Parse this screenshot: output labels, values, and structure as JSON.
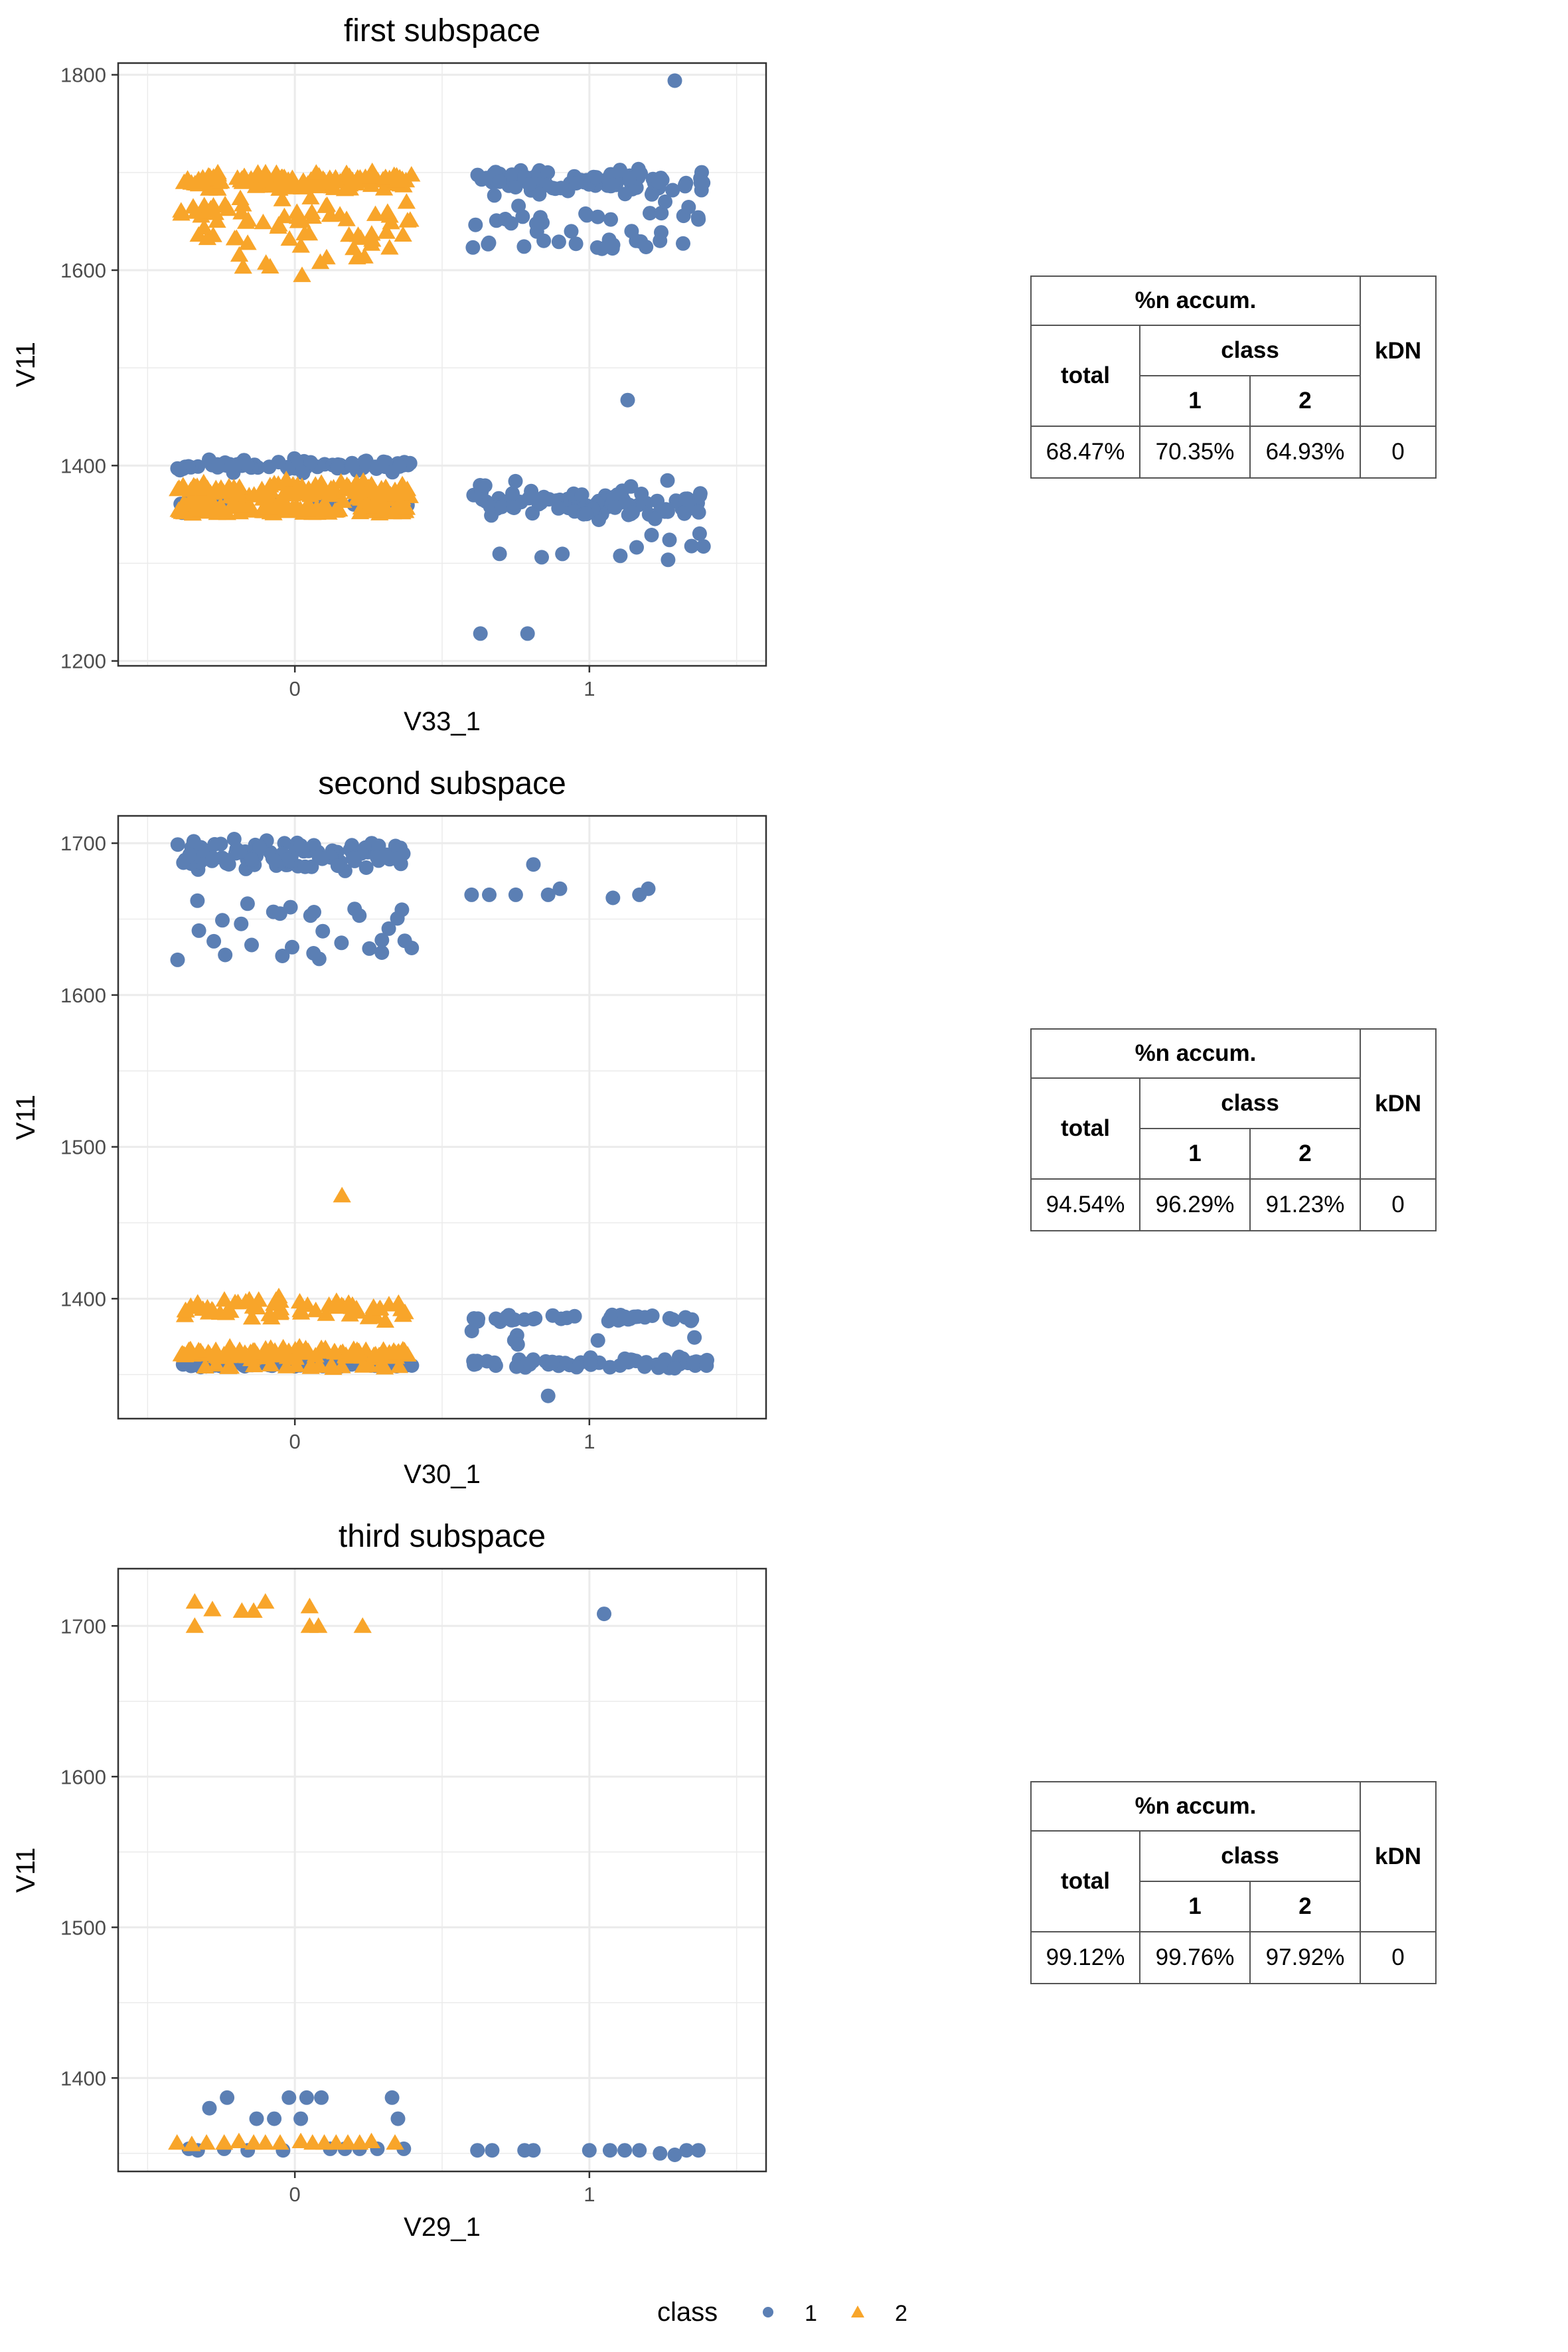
{
  "colors": {
    "class1": "#5b7fb4",
    "class2": "#f8a52a",
    "grid": "#ebebeb",
    "panel_border": "#333333",
    "axis_text": "#4d4d4d"
  },
  "chart_data": [
    {
      "type": "scatter",
      "title": "first subspace",
      "xlabel": "V33_1",
      "ylabel": "V11",
      "xlim": [
        -0.6,
        1.6
      ],
      "ylim": [
        1195,
        1812
      ],
      "xticks": [
        0,
        1
      ],
      "xtick_labels": [
        "0",
        "1"
      ],
      "yticks": [
        1200,
        1400,
        1600,
        1800
      ],
      "ytick_labels": [
        "1200",
        "1400",
        "1600",
        "1800"
      ],
      "jitter_width": 0.4,
      "series": [
        {
          "name": "1",
          "clusters": [
            {
              "x": 1,
              "y": 1690,
              "n": 90,
              "spread": 6
            },
            {
              "x": 1,
              "y": 1655,
              "n": 24,
              "spread": 8
            },
            {
              "x": 1,
              "y": 1627,
              "n": 18,
              "spread": 3
            },
            {
              "x": 0,
              "y": 1400,
              "n": 70,
              "spread": 3
            },
            {
              "x": 0,
              "y": 1360,
              "n": 22,
              "spread": 4
            },
            {
              "x": 1,
              "y": 1360,
              "n": 85,
              "spread": 6
            },
            {
              "x": 1,
              "y": 1380,
              "n": 10,
              "spread": 6
            },
            {
              "x": 1,
              "y": 1315,
              "n": 11,
              "spread": 8
            }
          ],
          "points": [
            {
              "x": 1.29,
              "y": 1794
            },
            {
              "x": 1.13,
              "y": 1467
            },
            {
              "x": 0.63,
              "y": 1228
            },
            {
              "x": 0.79,
              "y": 1228
            }
          ]
        },
        {
          "name": "2",
          "clusters": [
            {
              "x": 0,
              "y": 1692,
              "n": 120,
              "spread": 4
            },
            {
              "x": 0,
              "y": 1658,
              "n": 40,
              "spread": 7
            },
            {
              "x": 0,
              "y": 1636,
              "n": 22,
              "spread": 6
            },
            {
              "x": 0,
              "y": 1610,
              "n": 10,
              "spread": 7
            },
            {
              "x": 0,
              "y": 1373,
              "n": 110,
              "spread": 5
            },
            {
              "x": 0,
              "y": 1355,
              "n": 110,
              "spread": 3
            }
          ],
          "points": []
        }
      ],
      "table": {
        "header_group": "%n accum.",
        "total_label": "total",
        "class_label": "class",
        "class1_label": "1",
        "class2_label": "2",
        "kdn_label": "kDN",
        "total": "68.47%",
        "class1": "70.35%",
        "class2": "64.93%",
        "kdn": "0"
      }
    },
    {
      "type": "scatter",
      "title": "second subspace",
      "xlabel": "V30_1",
      "ylabel": "V11",
      "xlim": [
        -0.6,
        1.6
      ],
      "ylim": [
        1321,
        1718
      ],
      "xticks": [
        0,
        1
      ],
      "xtick_labels": [
        "0",
        "1"
      ],
      "yticks": [
        1400,
        1500,
        1600,
        1700
      ],
      "ytick_labels": [
        "1400",
        "1500",
        "1600",
        "1700"
      ],
      "jitter_width": 0.4,
      "series": [
        {
          "name": "1",
          "clusters": [
            {
              "x": 0,
              "y": 1692,
              "n": 95,
              "spread": 5
            },
            {
              "x": 0,
              "y": 1652,
              "n": 16,
              "spread": 6
            },
            {
              "x": 0,
              "y": 1630,
              "n": 14,
              "spread": 4
            },
            {
              "x": 0,
              "y": 1357,
              "n": 110,
              "spread": 1
            },
            {
              "x": 1,
              "y": 1387,
              "n": 40,
              "spread": 1
            },
            {
              "x": 1,
              "y": 1358,
              "n": 55,
              "spread": 2
            },
            {
              "x": 1,
              "y": 1375,
              "n": 6,
              "spread": 3
            }
          ],
          "points": [
            {
              "x": 0.6,
              "y": 1666
            },
            {
              "x": 0.66,
              "y": 1666
            },
            {
              "x": 0.75,
              "y": 1666
            },
            {
              "x": 0.81,
              "y": 1686
            },
            {
              "x": 0.86,
              "y": 1666
            },
            {
              "x": 0.9,
              "y": 1670
            },
            {
              "x": 1.08,
              "y": 1664
            },
            {
              "x": 1.17,
              "y": 1666
            },
            {
              "x": 1.2,
              "y": 1670
            },
            {
              "x": 0.86,
              "y": 1336
            }
          ]
        },
        {
          "name": "2",
          "clusters": [
            {
              "x": 0,
              "y": 1394,
              "n": 60,
              "spread": 4
            },
            {
              "x": 0,
              "y": 1364,
              "n": 100,
              "spread": 2
            },
            {
              "x": 0,
              "y": 1356,
              "n": 20,
              "spread": 1
            }
          ],
          "points": [
            {
              "x": 0.16,
              "y": 1468
            }
          ]
        }
      ],
      "table": {
        "header_group": "%n accum.",
        "total_label": "total",
        "class_label": "class",
        "class1_label": "1",
        "class2_label": "2",
        "kdn_label": "kDN",
        "total": "94.54%",
        "class1": "96.29%",
        "class2": "91.23%",
        "kdn": "0"
      }
    },
    {
      "type": "scatter",
      "title": "third subspace",
      "xlabel": "V29_1",
      "ylabel": "V11",
      "xlim": [
        -0.6,
        1.6
      ],
      "ylim": [
        1338,
        1738
      ],
      "xticks": [
        0,
        1
      ],
      "xtick_labels": [
        "0",
        "1"
      ],
      "yticks": [
        1400,
        1500,
        1600,
        1700
      ],
      "ytick_labels": [
        "1400",
        "1500",
        "1600",
        "1700"
      ],
      "jitter_width": 0.4,
      "series": [
        {
          "name": "1",
          "clusters": [],
          "points": [
            {
              "x": 1.05,
              "y": 1708
            },
            {
              "x": -0.36,
              "y": 1353
            },
            {
              "x": -0.33,
              "y": 1352
            },
            {
              "x": -0.29,
              "y": 1380
            },
            {
              "x": -0.23,
              "y": 1387
            },
            {
              "x": -0.24,
              "y": 1353
            },
            {
              "x": -0.16,
              "y": 1352
            },
            {
              "x": -0.13,
              "y": 1373
            },
            {
              "x": -0.07,
              "y": 1373
            },
            {
              "x": -0.04,
              "y": 1352
            },
            {
              "x": -0.02,
              "y": 1387
            },
            {
              "x": 0.02,
              "y": 1373
            },
            {
              "x": 0.04,
              "y": 1387
            },
            {
              "x": 0.09,
              "y": 1387
            },
            {
              "x": 0.12,
              "y": 1353
            },
            {
              "x": 0.17,
              "y": 1353
            },
            {
              "x": 0.22,
              "y": 1353
            },
            {
              "x": 0.28,
              "y": 1353
            },
            {
              "x": 0.33,
              "y": 1387
            },
            {
              "x": 0.35,
              "y": 1373
            },
            {
              "x": 0.37,
              "y": 1353
            },
            {
              "x": 0.62,
              "y": 1352
            },
            {
              "x": 0.67,
              "y": 1352
            },
            {
              "x": 0.78,
              "y": 1352
            },
            {
              "x": 0.81,
              "y": 1352
            },
            {
              "x": 1.0,
              "y": 1352
            },
            {
              "x": 1.07,
              "y": 1352
            },
            {
              "x": 1.12,
              "y": 1352
            },
            {
              "x": 1.17,
              "y": 1352
            },
            {
              "x": 1.24,
              "y": 1350
            },
            {
              "x": 1.29,
              "y": 1349
            },
            {
              "x": 1.33,
              "y": 1352
            },
            {
              "x": 1.37,
              "y": 1352
            }
          ]
        },
        {
          "name": "2",
          "clusters": [],
          "points": [
            {
              "x": -0.34,
              "y": 1716
            },
            {
              "x": -0.34,
              "y": 1700
            },
            {
              "x": -0.28,
              "y": 1711
            },
            {
              "x": -0.18,
              "y": 1710
            },
            {
              "x": -0.14,
              "y": 1710
            },
            {
              "x": -0.1,
              "y": 1716
            },
            {
              "x": 0.05,
              "y": 1713
            },
            {
              "x": 0.05,
              "y": 1700
            },
            {
              "x": 0.08,
              "y": 1700
            },
            {
              "x": 0.23,
              "y": 1700
            },
            {
              "x": -0.4,
              "y": 1357
            },
            {
              "x": -0.35,
              "y": 1356
            },
            {
              "x": -0.3,
              "y": 1357
            },
            {
              "x": -0.24,
              "y": 1357
            },
            {
              "x": -0.19,
              "y": 1358
            },
            {
              "x": -0.14,
              "y": 1357
            },
            {
              "x": -0.1,
              "y": 1357
            },
            {
              "x": -0.05,
              "y": 1357
            },
            {
              "x": 0.02,
              "y": 1358
            },
            {
              "x": 0.06,
              "y": 1357
            },
            {
              "x": 0.1,
              "y": 1357
            },
            {
              "x": 0.14,
              "y": 1357
            },
            {
              "x": 0.18,
              "y": 1357
            },
            {
              "x": 0.22,
              "y": 1357
            },
            {
              "x": 0.26,
              "y": 1358
            },
            {
              "x": 0.34,
              "y": 1357
            }
          ]
        }
      ],
      "table": {
        "header_group": "%n accum.",
        "total_label": "total",
        "class_label": "class",
        "class1_label": "1",
        "class2_label": "2",
        "kdn_label": "kDN",
        "total": "99.12%",
        "class1": "99.76%",
        "class2": "97.92%",
        "kdn": "0"
      }
    }
  ],
  "legend": {
    "title": "class",
    "items": [
      "1",
      "2"
    ]
  }
}
